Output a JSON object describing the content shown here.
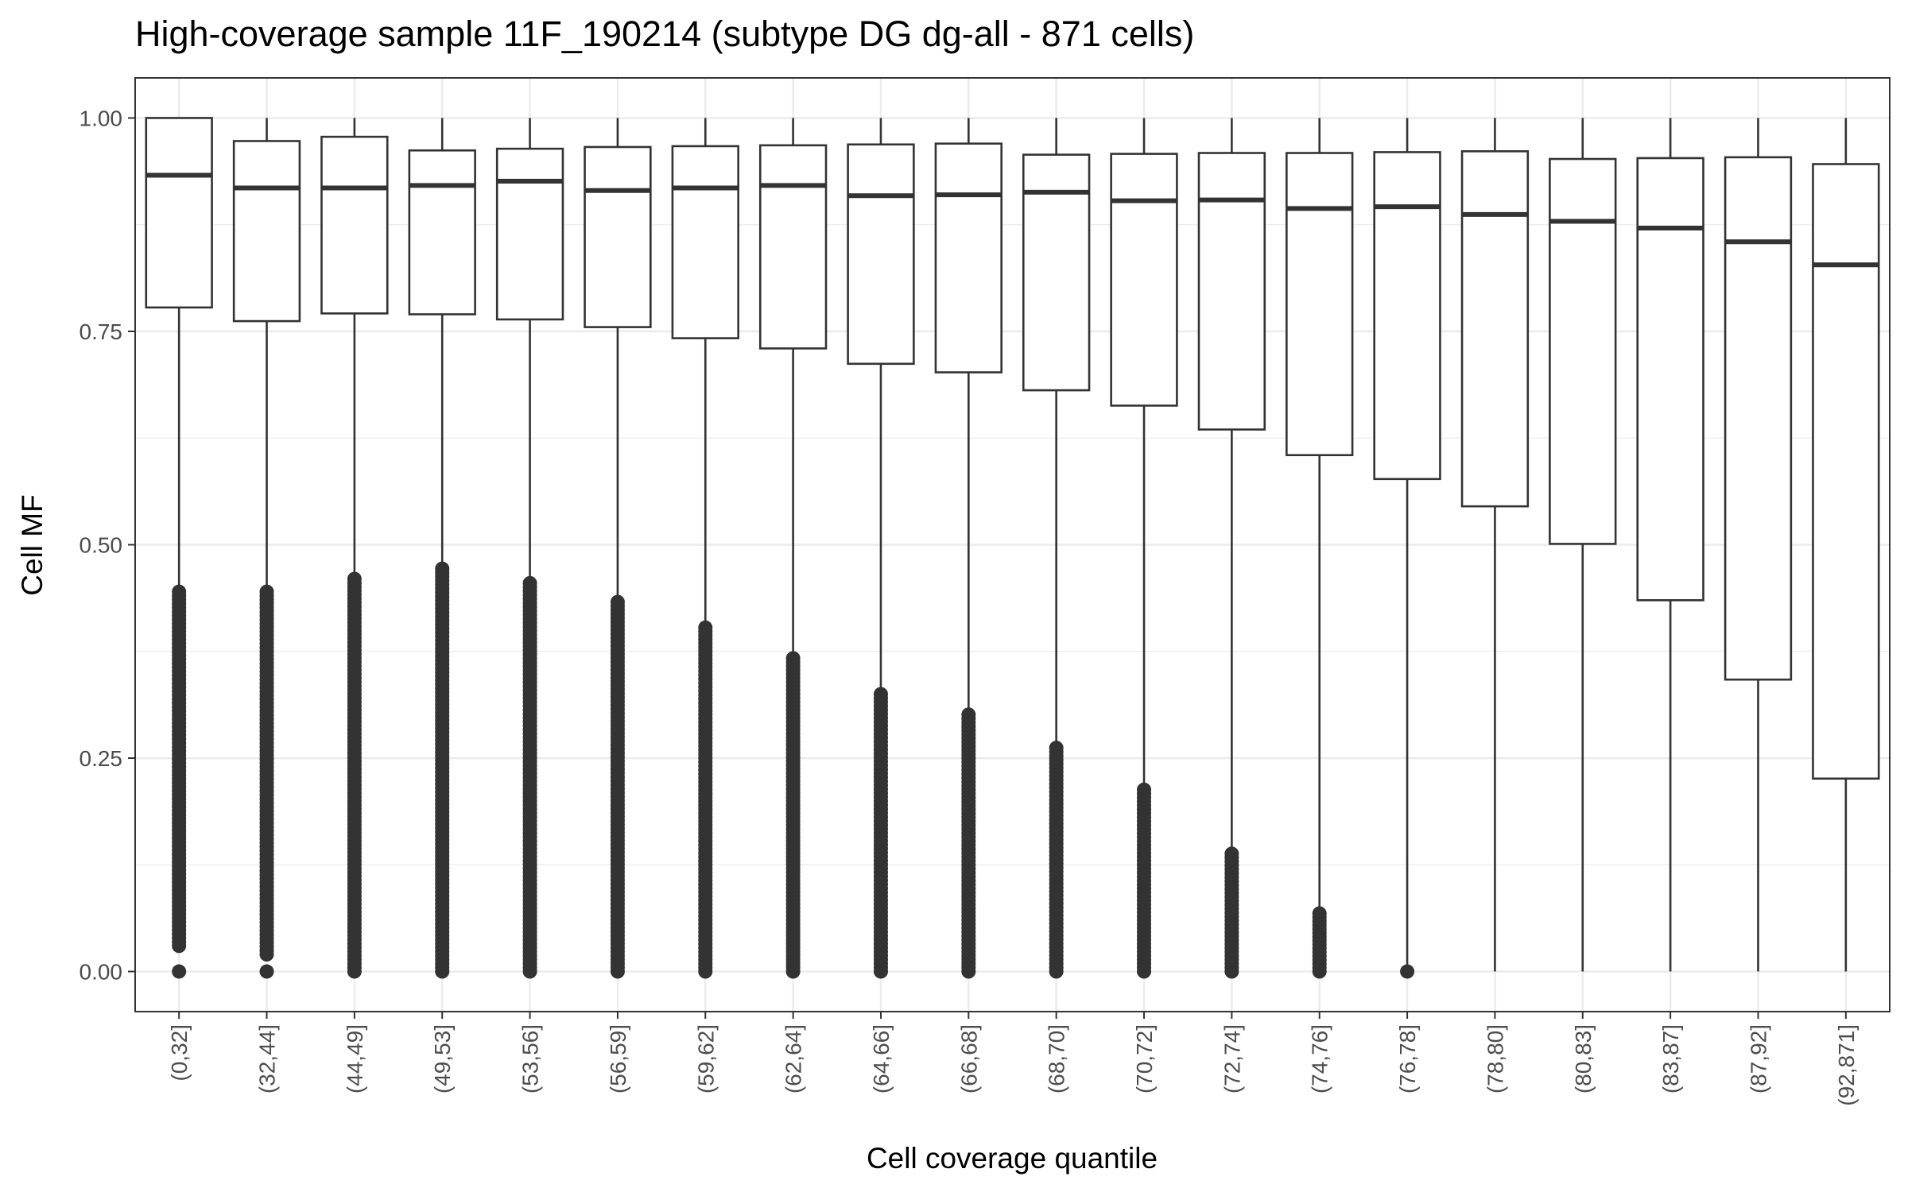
{
  "chart_data": {
    "type": "boxplot",
    "title": "High-coverage sample 11F_190214 (subtype DG dg-all - 871 cells)",
    "xlabel": "Cell coverage quantile",
    "ylabel": "Cell MF",
    "ylim": [
      -0.047,
      1.047
    ],
    "yticks": [
      0.0,
      0.25,
      0.5,
      0.75,
      1.0
    ],
    "ytick_labels": [
      "0.00",
      "0.25",
      "0.50",
      "0.75",
      "1.00"
    ],
    "grid": true,
    "theme": "bw",
    "box_color": "#333333",
    "outlier_color": "#333333",
    "grid_color": "#ebebeb",
    "categories": [
      "(0,32]",
      "(32,44]",
      "(44,49]",
      "(49,53]",
      "(53,56]",
      "(56,59]",
      "(59,62]",
      "(62,64]",
      "(64,66]",
      "(66,68]",
      "(68,70]",
      "(70,72]",
      "(72,74]",
      "(74,76]",
      "(76,78]",
      "(78,80]",
      "(80,83]",
      "(83,87]",
      "(87,92]",
      "(92,871]"
    ],
    "boxes": [
      {
        "category": "(0,32]",
        "whisker_low": 0.447,
        "q1": 0.778,
        "median": 0.933,
        "q3": 1.0,
        "whisker_high": 1.0,
        "outlier_range": [
          0.03,
          0.445
        ],
        "outliers_extra": [
          0.0
        ]
      },
      {
        "category": "(32,44]",
        "whisker_low": 0.447,
        "q1": 0.762,
        "median": 0.918,
        "q3": 0.973,
        "whisker_high": 1.0,
        "outlier_range": [
          0.02,
          0.445
        ],
        "outliers_extra": [
          0.0
        ]
      },
      {
        "category": "(44,49]",
        "whisker_low": 0.462,
        "q1": 0.771,
        "median": 0.918,
        "q3": 0.978,
        "whisker_high": 1.0,
        "outlier_range": [
          0.0,
          0.46
        ],
        "outliers_extra": []
      },
      {
        "category": "(49,53]",
        "whisker_low": 0.474,
        "q1": 0.77,
        "median": 0.921,
        "q3": 0.962,
        "whisker_high": 1.0,
        "outlier_range": [
          0.0,
          0.472
        ],
        "outliers_extra": []
      },
      {
        "category": "(53,56]",
        "whisker_low": 0.457,
        "q1": 0.764,
        "median": 0.926,
        "q3": 0.964,
        "whisker_high": 1.0,
        "outlier_range": [
          0.0,
          0.455
        ],
        "outliers_extra": []
      },
      {
        "category": "(56,59]",
        "whisker_low": 0.435,
        "q1": 0.755,
        "median": 0.915,
        "q3": 0.966,
        "whisker_high": 1.0,
        "outlier_range": [
          0.0,
          0.433
        ],
        "outliers_extra": []
      },
      {
        "category": "(59,62]",
        "whisker_low": 0.405,
        "q1": 0.742,
        "median": 0.918,
        "q3": 0.967,
        "whisker_high": 1.0,
        "outlier_range": [
          0.0,
          0.403
        ],
        "outliers_extra": []
      },
      {
        "category": "(62,64]",
        "whisker_low": 0.369,
        "q1": 0.73,
        "median": 0.921,
        "q3": 0.968,
        "whisker_high": 1.0,
        "outlier_range": [
          0.0,
          0.367
        ],
        "outliers_extra": []
      },
      {
        "category": "(64,66]",
        "whisker_low": 0.327,
        "q1": 0.712,
        "median": 0.909,
        "q3": 0.969,
        "whisker_high": 1.0,
        "outlier_range": [
          0.0,
          0.325
        ],
        "outliers_extra": []
      },
      {
        "category": "(66,68]",
        "whisker_low": 0.303,
        "q1": 0.702,
        "median": 0.91,
        "q3": 0.97,
        "whisker_high": 1.0,
        "outlier_range": [
          0.0,
          0.301
        ],
        "outliers_extra": []
      },
      {
        "category": "(68,70]",
        "whisker_low": 0.264,
        "q1": 0.681,
        "median": 0.913,
        "q3": 0.957,
        "whisker_high": 1.0,
        "outlier_range": [
          0.0,
          0.262
        ],
        "outliers_extra": []
      },
      {
        "category": "(70,72]",
        "whisker_low": 0.215,
        "q1": 0.663,
        "median": 0.903,
        "q3": 0.958,
        "whisker_high": 1.0,
        "outlier_range": [
          0.0,
          0.213
        ],
        "outliers_extra": []
      },
      {
        "category": "(72,74]",
        "whisker_low": 0.14,
        "q1": 0.635,
        "median": 0.904,
        "q3": 0.959,
        "whisker_high": 1.0,
        "outlier_range": [
          0.0,
          0.138
        ],
        "outliers_extra": []
      },
      {
        "category": "(74,76]",
        "whisker_low": 0.07,
        "q1": 0.605,
        "median": 0.894,
        "q3": 0.959,
        "whisker_high": 1.0,
        "outlier_range": [
          0.0,
          0.068
        ],
        "outliers_extra": []
      },
      {
        "category": "(76,78]",
        "whisker_low": 0.0,
        "q1": 0.577,
        "median": 0.896,
        "q3": 0.96,
        "whisker_high": 1.0,
        "outlier_range": null,
        "outliers_extra": [
          0.0
        ]
      },
      {
        "category": "(78,80]",
        "whisker_low": 0.0,
        "q1": 0.545,
        "median": 0.887,
        "q3": 0.961,
        "whisker_high": 1.0,
        "outlier_range": null,
        "outliers_extra": []
      },
      {
        "category": "(80,83]",
        "whisker_low": 0.0,
        "q1": 0.501,
        "median": 0.879,
        "q3": 0.952,
        "whisker_high": 1.0,
        "outlier_range": null,
        "outliers_extra": []
      },
      {
        "category": "(83,87]",
        "whisker_low": 0.0,
        "q1": 0.435,
        "median": 0.871,
        "q3": 0.953,
        "whisker_high": 1.0,
        "outlier_range": null,
        "outliers_extra": []
      },
      {
        "category": "(87,92]",
        "whisker_low": 0.0,
        "q1": 0.342,
        "median": 0.855,
        "q3": 0.954,
        "whisker_high": 1.0,
        "outlier_range": null,
        "outliers_extra": []
      },
      {
        "category": "(92,871]",
        "whisker_low": 0.0,
        "q1": 0.226,
        "median": 0.828,
        "q3": 0.946,
        "whisker_high": 1.0,
        "outlier_range": null,
        "outliers_extra": []
      }
    ]
  }
}
